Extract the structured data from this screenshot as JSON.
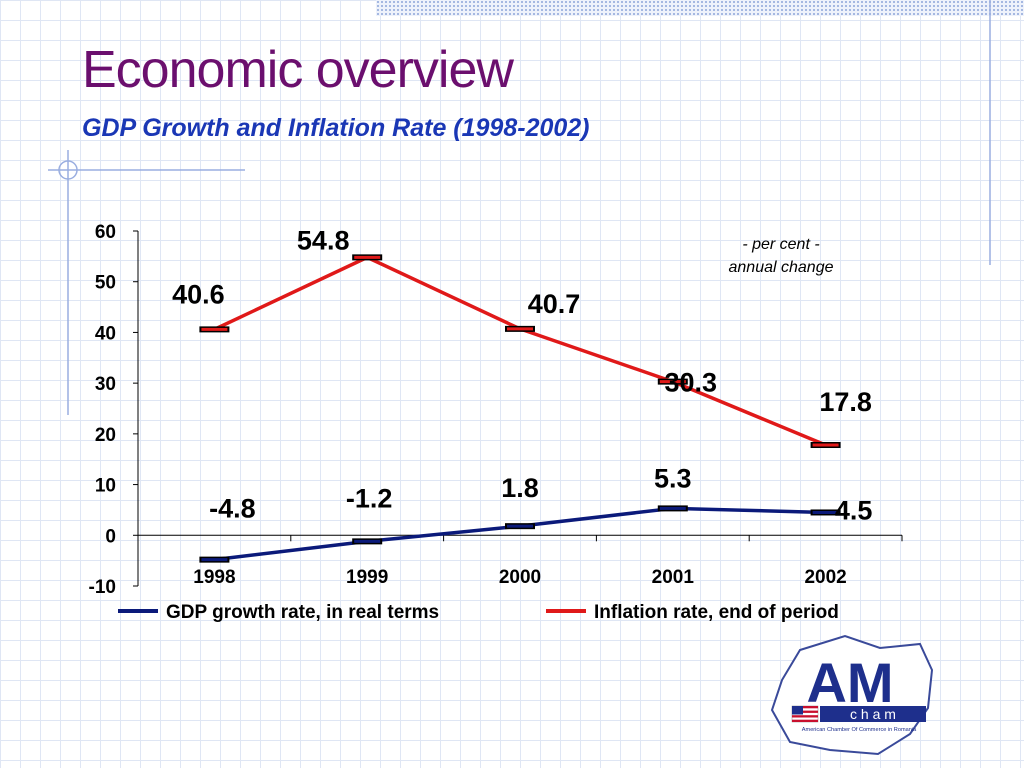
{
  "slide": {
    "title": "Economic overview",
    "subtitle": "GDP Growth and Inflation Rate (1998-2002)"
  },
  "chart_data": {
    "type": "line",
    "categories": [
      "1998",
      "1999",
      "2000",
      "2001",
      "2002"
    ],
    "ylim": [
      -10,
      60
    ],
    "yticks": [
      -10,
      0,
      10,
      20,
      30,
      40,
      50,
      60
    ],
    "annotation": [
      "- per cent -",
      "annual change"
    ],
    "series": [
      {
        "name": "GDP growth rate, in real terms",
        "values": [
          -4.8,
          -1.2,
          1.8,
          5.3,
          4.5
        ],
        "labels": [
          "-4.8",
          "-1.2",
          "1.8",
          "5.3",
          "4.5"
        ],
        "color": "#0b1a7a"
      },
      {
        "name": "Inflation rate, end of period",
        "values": [
          40.6,
          54.8,
          40.7,
          30.3,
          17.8
        ],
        "labels": [
          "40.6",
          "54.8",
          "40.7",
          "30.3",
          "17.8"
        ],
        "color": "#e01919"
      }
    ],
    "legend": "bottom"
  },
  "logo": {
    "main": "AM",
    "sub": "c h a m",
    "caption": "American Chamber Of Commerce in Romania",
    "icon": "us-flag-icon"
  }
}
